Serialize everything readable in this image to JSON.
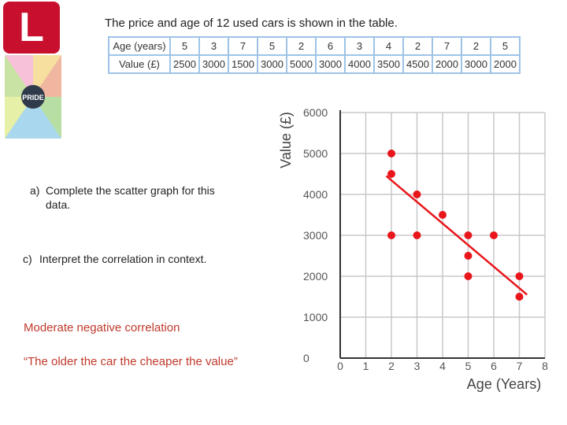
{
  "logo": "L",
  "badge": "PRIDE",
  "table": {
    "title": "The price and age of 12 used cars is shown in the table.",
    "rows": [
      [
        "Age (years)",
        5,
        3,
        7,
        5,
        2,
        6,
        3,
        4,
        2,
        7,
        2,
        5
      ],
      [
        "Value (£)",
        2500,
        3000,
        1500,
        3000,
        5000,
        3000,
        4000,
        3500,
        4500,
        2000,
        3000,
        2000
      ]
    ]
  },
  "questions": [
    {
      "label": "a)",
      "text": "Complete the scatter graph for this data."
    },
    {
      "label": "c)",
      "text": "Interpret the correlation in context."
    }
  ],
  "answer": [
    "Moderate negative correlation",
    "“The older the car the cheaper the value”"
  ],
  "chart_data": {
    "type": "scatter",
    "xlabel": "Age (Years)",
    "ylabel": "Value (£)",
    "x": [
      2,
      2,
      2,
      3,
      3,
      4,
      5,
      5,
      5,
      6,
      7,
      7
    ],
    "values": [
      5000,
      4500,
      3000,
      4000,
      3000,
      3500,
      3000,
      2500,
      2000,
      3000,
      2000,
      1500
    ],
    "color": "#e8151b",
    "trend_line": {
      "x": [
        1.8,
        7.3
      ],
      "values": [
        4450,
        1550
      ]
    },
    "xlim": [
      0,
      8
    ],
    "ylim": [
      0,
      6000
    ],
    "xticks": [
      0,
      1,
      2,
      3,
      4,
      5,
      6,
      7,
      8
    ],
    "yticks": [
      0,
      1000,
      2000,
      3000,
      4000,
      5000,
      6000
    ],
    "grid": true
  }
}
